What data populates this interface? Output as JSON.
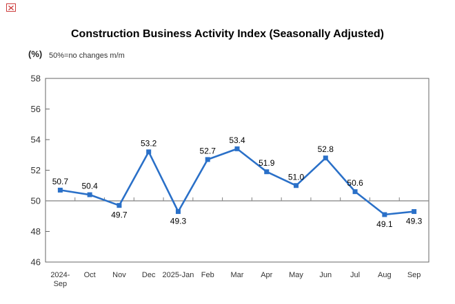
{
  "icons": {
    "broken_image": "broken-image-icon"
  },
  "colors": {
    "line": "#2A70C8",
    "marker": "#2A70C8",
    "plot_border": "#666666",
    "baseline": "#808080",
    "tick_text": "#333333",
    "data_label_text": "#000000",
    "broken_icon_red": "#CC3B3B",
    "background": "#FFFFFF"
  },
  "chart_data": {
    "type": "line",
    "title": "Construction Business Activity Index (Seasonally Adjusted)",
    "unit": "(%)",
    "note": "50%=no changes m/m",
    "categories": [
      "2024-Sep",
      "Oct",
      "Nov",
      "Dec",
      "2025-Jan",
      "Feb",
      "Mar",
      "Apr",
      "May",
      "Jun",
      "Jul",
      "Aug",
      "Sep"
    ],
    "x_tick_lines": [
      [
        "2024-",
        "Sep"
      ],
      [
        "Oct"
      ],
      [
        "Nov"
      ],
      [
        "Dec"
      ],
      [
        "2025-Jan"
      ],
      [
        "Feb"
      ],
      [
        "Mar"
      ],
      [
        "Apr"
      ],
      [
        "May"
      ],
      [
        "Jun"
      ],
      [
        "Jul"
      ],
      [
        "Aug"
      ],
      [
        "Sep"
      ]
    ],
    "values": [
      50.7,
      50.4,
      49.7,
      53.2,
      49.3,
      52.7,
      53.4,
      51.9,
      51.0,
      52.8,
      50.6,
      49.1,
      49.3
    ],
    "ylim": [
      46,
      58
    ],
    "ytick_step": 2,
    "yticks": [
      46,
      48,
      50,
      52,
      54,
      56,
      58
    ],
    "baseline": 50,
    "label_decimals": 1,
    "grid": false,
    "legend": "none",
    "xlabel": "",
    "ylabel": ""
  }
}
